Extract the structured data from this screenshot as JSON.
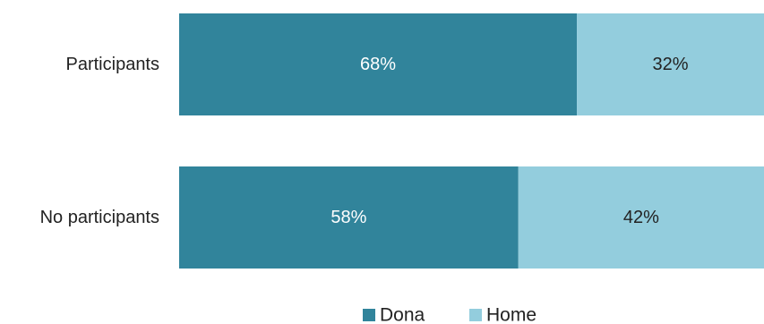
{
  "chart_data": {
    "type": "bar",
    "orientation": "horizontal",
    "stacked": true,
    "normalized_to": 100,
    "categories": [
      "Participants",
      "No participants"
    ],
    "series": [
      {
        "name": "Dona",
        "values": [
          68,
          58
        ],
        "labels": [
          "68%",
          "58%"
        ],
        "color": "#31849B",
        "label_color": "#ffffff"
      },
      {
        "name": "Home",
        "values": [
          32,
          42
        ],
        "labels": [
          "32%",
          "42%"
        ],
        "color": "#93CDDD",
        "label_color": "#222222"
      }
    ],
    "title": "",
    "xlabel": "",
    "ylabel": "",
    "xlim": [
      0,
      100
    ],
    "grid": false,
    "legend": "bottom-center"
  }
}
